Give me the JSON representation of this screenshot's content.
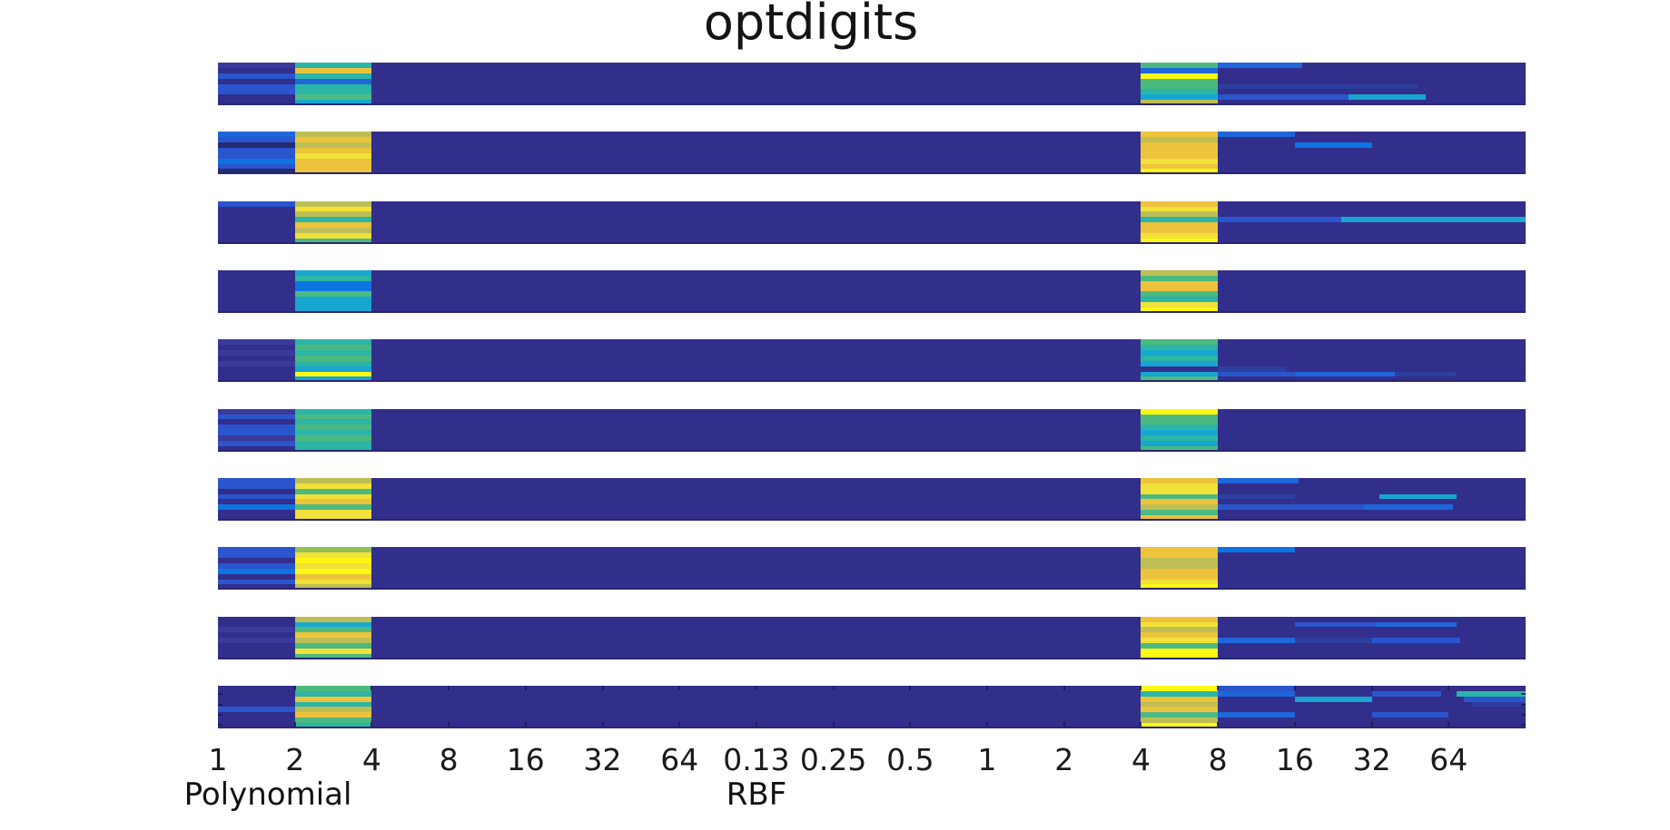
{
  "colors": {
    "navy": "#322e8c",
    "navy2": "#3a3a9a",
    "darknavy": "#262a70",
    "blue0": "#2c3f9e",
    "blue1": "#2a55cd",
    "blue2": "#1e66d9",
    "blue3": "#0d74e2",
    "cyan": "#17a6cf",
    "teal": "#2bb5a6",
    "green": "#4cba80",
    "lime": "#93c156",
    "khaki": "#bdbf55",
    "gold": "#edc33c",
    "yellow": "#f1e139",
    "brightyellow": "#fcf813"
  },
  "chart_data": {
    "type": "heatmap",
    "title": "optdigits",
    "x_tick_labels": [
      "1",
      "2",
      "4",
      "8",
      "16",
      "32",
      "64",
      "0.13",
      "0.25",
      "0.5",
      "1",
      "2",
      "4",
      "8",
      "16",
      "32",
      "64"
    ],
    "x_sections": [
      {
        "name": "Polynomial",
        "ticks": [
          "1",
          "2",
          "4",
          "8",
          "16",
          "32",
          "64"
        ]
      },
      {
        "name": "RBF",
        "ticks": [
          "0.13",
          "0.25",
          "0.5",
          "1",
          "2",
          "4",
          "8",
          "16",
          "32",
          "64"
        ]
      }
    ],
    "axis_labels": [
      {
        "label": "Polynomial"
      },
      {
        "label": "RBF"
      }
    ],
    "n_columns": 17,
    "n_strips": 10,
    "n_subrows_per_strip": 8,
    "background_color_key": "navy",
    "value_encoding": {
      "low": "navy",
      "high": "brightyellow"
    },
    "hot_columns": {
      "polynomial_degree_2_to_4": 1,
      "rbf_gamma_4_to_8": 12
    },
    "strips": [
      {
        "col0": [
          "navy2",
          "navy",
          "blue1",
          "navy",
          "blue1",
          "blue1",
          "navy",
          "navy"
        ],
        "col1": [
          "teal",
          "gold",
          "teal",
          "blue2",
          "teal",
          "teal",
          "green",
          "cyan"
        ],
        "col12": [
          "green",
          "blue2",
          "brightyellow",
          "green",
          "green",
          "teal",
          "cyan",
          "khaki"
        ],
        "extras": [
          {
            "row": 0,
            "start": 13,
            "end": 14.1,
            "color": "blue2"
          },
          {
            "row": 4,
            "start": 13,
            "end": 15.6,
            "color": "blue0"
          },
          {
            "row": 6,
            "start": 13,
            "end": 14.7,
            "color": "blue1"
          },
          {
            "row": 6,
            "start": 14.7,
            "end": 15.7,
            "color": "cyan"
          }
        ]
      },
      {
        "col0": [
          "blue2",
          "blue1",
          "darknavy",
          "blue1",
          "blue1",
          "blue3",
          "blue1",
          "darknavy"
        ],
        "col1": [
          "khaki",
          "gold",
          "khaki",
          "gold",
          "yellow",
          "gold",
          "gold",
          "gold"
        ],
        "col12": [
          "gold",
          "khaki",
          "gold",
          "gold",
          "gold",
          "yellow",
          "gold",
          "brightyellow"
        ],
        "extras": [
          {
            "row": 0,
            "start": 13,
            "end": 14,
            "color": "blue2"
          },
          {
            "row": 2,
            "start": 14,
            "end": 15,
            "color": "blue3"
          }
        ]
      },
      {
        "col0": [
          "blue1",
          "navy",
          "navy",
          "navy",
          "navy",
          "navy",
          "navy",
          "navy"
        ],
        "col1": [
          "khaki",
          "yellow",
          "khaki",
          "teal",
          "gold",
          "khaki",
          "yellow",
          "green"
        ],
        "col12": [
          "gold",
          "yellow",
          "khaki",
          "teal",
          "gold",
          "gold",
          "yellow",
          "brightyellow"
        ],
        "extras": [
          {
            "row": 3,
            "start": 13,
            "end": 14.6,
            "color": "blue1"
          },
          {
            "row": 3,
            "start": 14.6,
            "end": 17,
            "color": "cyan"
          }
        ]
      },
      {
        "col0": [
          "navy",
          "navy",
          "navy",
          "navy",
          "navy",
          "navy",
          "navy",
          "navy"
        ],
        "col1": [
          "cyan",
          "teal",
          "blue3",
          "blue3",
          "green",
          "cyan",
          "cyan",
          "cyan"
        ],
        "col12": [
          "khaki",
          "green",
          "gold",
          "gold",
          "green",
          "teal",
          "yellow",
          "brightyellow"
        ],
        "extras": []
      },
      {
        "col0": [
          "navy2",
          "navy",
          "navy2",
          "navy",
          "navy2",
          "navy",
          "navy",
          "navy"
        ],
        "col1": [
          "teal",
          "green",
          "teal",
          "green",
          "teal",
          "cyan",
          "brightyellow",
          "cyan"
        ],
        "col12": [
          "green",
          "teal",
          "cyan",
          "teal",
          "cyan",
          "navy",
          "cyan",
          "green"
        ],
        "extras": [
          {
            "row": 5,
            "start": 13,
            "end": 13.9,
            "color": "blue0"
          },
          {
            "row": 6,
            "start": 13,
            "end": 14,
            "color": "blue1"
          },
          {
            "row": 6,
            "start": 14,
            "end": 15.3,
            "color": "blue2"
          },
          {
            "row": 6,
            "start": 15.3,
            "end": 16.1,
            "color": "blue0"
          }
        ]
      },
      {
        "col0": [
          "navy2",
          "blue1",
          "navy",
          "blue1",
          "blue1",
          "navy2",
          "blue1",
          "navy"
        ],
        "col1": [
          "teal",
          "green",
          "teal",
          "green",
          "teal",
          "green",
          "teal",
          "teal"
        ],
        "col12": [
          "brightyellow",
          "green",
          "green",
          "teal",
          "cyan",
          "teal",
          "cyan",
          "green"
        ],
        "extras": []
      },
      {
        "col0": [
          "blue1",
          "blue1",
          "navy",
          "blue1",
          "navy",
          "blue3",
          "navy",
          "navy"
        ],
        "col1": [
          "khaki",
          "yellow",
          "green",
          "yellow",
          "gold",
          "green",
          "yellow",
          "yellow"
        ],
        "col12": [
          "gold",
          "yellow",
          "yellow",
          "green",
          "gold",
          "khaki",
          "green",
          "gold"
        ],
        "extras": [
          {
            "row": 0,
            "start": 13,
            "end": 14.05,
            "color": "blue2"
          },
          {
            "row": 3,
            "start": 13,
            "end": 14,
            "color": "blue0"
          },
          {
            "row": 3,
            "start": 15.1,
            "end": 16.1,
            "color": "cyan"
          },
          {
            "row": 5,
            "start": 13,
            "end": 14.9,
            "color": "blue1"
          },
          {
            "row": 5,
            "start": 14.9,
            "end": 16.05,
            "color": "blue2"
          }
        ]
      },
      {
        "col0": [
          "blue1",
          "blue1",
          "navy",
          "blue1",
          "blue3",
          "navy",
          "blue1",
          "navy"
        ],
        "col1": [
          "lime",
          "yellow",
          "brightyellow",
          "yellow",
          "brightyellow",
          "gold",
          "yellow",
          "khaki"
        ],
        "col12": [
          "gold",
          "gold",
          "khaki",
          "khaki",
          "gold",
          "gold",
          "yellow",
          "brightyellow"
        ],
        "extras": [
          {
            "row": 0,
            "start": 13,
            "end": 14,
            "color": "blue3"
          }
        ]
      },
      {
        "col0": [
          "navy",
          "navy",
          "navy2",
          "navy",
          "navy2",
          "navy",
          "navy",
          "navy"
        ],
        "col1": [
          "khaki",
          "cyan",
          "green",
          "gold",
          "khaki",
          "green",
          "yellow",
          "green"
        ],
        "col12": [
          "gold",
          "yellow",
          "khaki",
          "gold",
          "yellow",
          "green",
          "brightyellow",
          "brightyellow"
        ],
        "extras": [
          {
            "row": 1,
            "start": 14,
            "end": 15.05,
            "color": "blue1"
          },
          {
            "row": 1,
            "start": 15.05,
            "end": 16.1,
            "color": "blue2"
          },
          {
            "row": 4,
            "start": 13,
            "end": 14,
            "color": "blue2"
          },
          {
            "row": 4,
            "start": 14,
            "end": 15,
            "color": "blue0"
          },
          {
            "row": 4,
            "start": 15,
            "end": 16.15,
            "color": "blue1"
          }
        ]
      },
      {
        "col0": [
          "navy",
          "navy",
          "navy",
          "navy",
          "blue1",
          "navy",
          "navy",
          "navy"
        ],
        "col1": [
          "green",
          "teal",
          "gold",
          "teal",
          "khaki",
          "gold",
          "green",
          "teal"
        ],
        "col12": [
          "brightyellow",
          "teal",
          "gold",
          "khaki",
          "gold",
          "green",
          "khaki",
          "brightyellow"
        ],
        "extras": [
          {
            "row": 0,
            "start": 13,
            "end": 14,
            "color": "blue1"
          },
          {
            "row": 1,
            "start": 13,
            "end": 14,
            "color": "blue2"
          },
          {
            "row": 1,
            "start": 15,
            "end": 15.9,
            "color": "blue1"
          },
          {
            "row": 1,
            "start": 16.1,
            "end": 17,
            "color": "teal"
          },
          {
            "row": 2,
            "start": 14,
            "end": 15,
            "color": "cyan"
          },
          {
            "row": 2,
            "start": 16.2,
            "end": 17,
            "color": "blue1"
          },
          {
            "row": 3,
            "start": 16.3,
            "end": 17,
            "color": "blue0"
          },
          {
            "row": 5,
            "start": 13,
            "end": 14,
            "color": "blue2"
          },
          {
            "row": 5,
            "start": 15,
            "end": 16,
            "color": "blue1"
          }
        ]
      }
    ]
  }
}
